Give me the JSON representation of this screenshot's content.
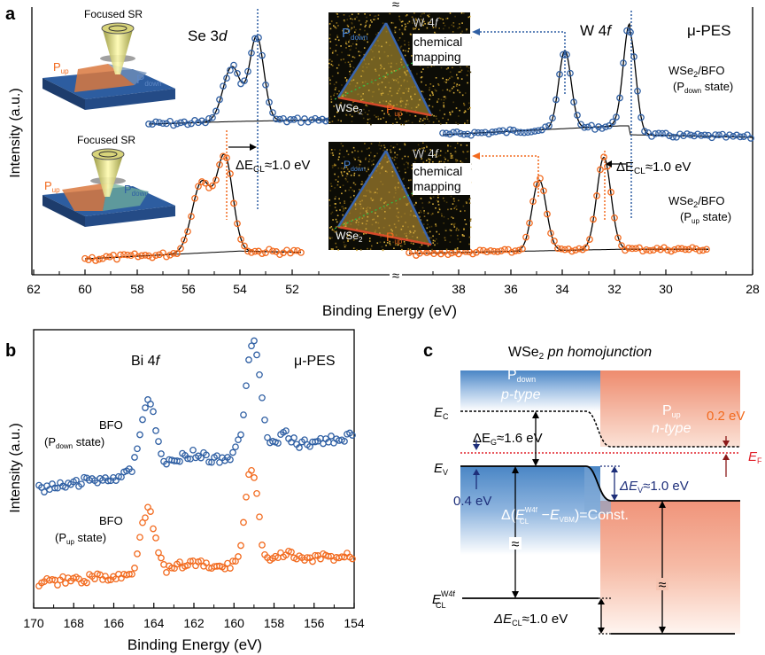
{
  "panels": {
    "a": "a",
    "b": "b",
    "c": "c"
  },
  "colors": {
    "pdown": "#2f5fa3",
    "pup": "#f26a1e",
    "ef": "#e0202a",
    "fill_pdown": "#4a86c5",
    "fill_pup": "#f0947a",
    "dark_red": "#8b1a1a",
    "navy": "#1e2f7a"
  },
  "panel_a": {
    "ylabel": "Intensity (a.u.)",
    "xlabel": "Binding Energy (eV)",
    "x_ticks_left": [
      "62",
      "60",
      "58",
      "56",
      "54",
      "52"
    ],
    "x_ticks_right": [
      "38",
      "36",
      "34",
      "32",
      "30",
      "28"
    ],
    "break_mark": "≈",
    "se_label": "Se 3",
    "se_label_d": "d",
    "w_label": "W 4",
    "w_label_f": "f",
    "mu_pes": "μ-PES",
    "focused_sr": "Focused SR",
    "p": "P",
    "sub_up": "up",
    "sub_down": "down",
    "map_w4f": "W 4",
    "map_f": "f",
    "map_chemical": "chemical",
    "map_mapping": "mapping",
    "map_wse": "WSe",
    "map_sub2": "2",
    "delta": "ΔE",
    "delta_sub": "CL",
    "delta_val": "≈1.0 eV",
    "wse_bfo": "WSe",
    "wse_bfo_rest": "/BFO",
    "state_open": "(P",
    "state_close": " state)"
  },
  "panel_b": {
    "ylabel": "Intensity (a.u.)",
    "xlabel": "Binding Energy (eV)",
    "x_ticks": [
      "170",
      "168",
      "166",
      "164",
      "162",
      "160",
      "158",
      "156",
      "154"
    ],
    "title_bi": "Bi 4",
    "title_f": "f",
    "mu_pes": "μ-PES",
    "bfo": "BFO",
    "state_open": "(P",
    "sub_down": "down",
    "sub_up": "up",
    "state_close": " state)"
  },
  "panel_c": {
    "title_a": "WSe",
    "title_sub": "2",
    "title_b": " pn homojunction",
    "p": "P",
    "sub_down": "down",
    "sub_up": "up",
    "p_type": "p-type",
    "n_type": "n-type",
    "ec": "E",
    "ec_sub": "C",
    "ev": "E",
    "ev_sub": "V",
    "ef": "E",
    "ef_sub": "F",
    "ecl": "E",
    "ecl_sup": "W4f",
    "ecl_sub": "CL",
    "dEg": "ΔE",
    "dEg_sub": "G",
    "dEg_val": "≈1.6 eV",
    "val_02": "0.2 eV",
    "val_04": "0.4 eV",
    "dEv": "ΔE",
    "dEv_sub": "V",
    "dEv_val": "≈1.0 eV",
    "const_a": "Δ(",
    "const_e": "E",
    "const_sup": "W4f",
    "const_sub": "CL",
    "const_mid": " −",
    "const_e2": "E",
    "const_sub2": "VBM",
    "const_end": ")=Const.",
    "dEcl": "ΔE",
    "dEcl_sub": "CL",
    "dEcl_val": "≈1.0 eV",
    "approx": "≈"
  },
  "chart_data": [
    {
      "type": "line",
      "panel": "a",
      "xlabel": "Binding Energy (eV)",
      "ylabel": "Intensity (a.u.)",
      "x_break": [
        51,
        39.5
      ],
      "xlim": [
        62,
        28
      ],
      "series": [
        {
          "name": "WSe2/BFO (Pdown state)",
          "region": "Se 3d",
          "peaks": [
            55.3,
            54.4
          ]
        },
        {
          "name": "WSe2/BFO (Pdown state)",
          "region": "W 4f",
          "peaks": [
            34.5,
            32.3
          ]
        },
        {
          "name": "WSe2/BFO (Pup state)",
          "region": "Se 3d",
          "peaks": [
            56.2,
            55.4
          ]
        },
        {
          "name": "WSe2/BFO (Pup state)",
          "region": "W 4f",
          "peaks": [
            35.4,
            33.2
          ]
        }
      ]
    },
    {
      "type": "line",
      "panel": "b",
      "xlabel": "Binding Energy (eV)",
      "ylabel": "Intensity (a.u.)",
      "xlim": [
        170,
        154
      ],
      "series": [
        {
          "name": "BFO (Pdown state)",
          "region": "Bi 4f",
          "peaks": [
            164.5,
            159.2
          ]
        },
        {
          "name": "BFO (Pup state)",
          "region": "Bi 4f",
          "peaks": [
            164.5,
            159.2
          ]
        }
      ]
    }
  ]
}
